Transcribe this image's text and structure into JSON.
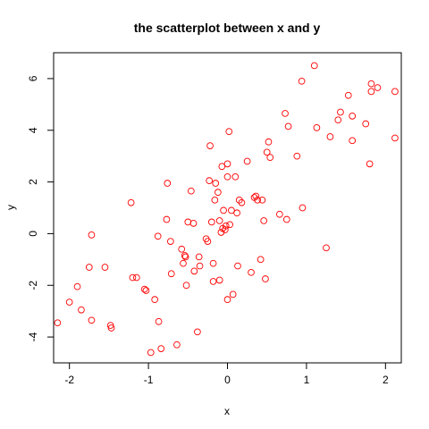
{
  "chart_data": {
    "type": "scatter",
    "title": "the scatterplot between x and y",
    "xlabel": "x",
    "ylabel": "y",
    "xlim": [
      -2.2,
      2.2
    ],
    "ylim": [
      -5.0,
      7.0
    ],
    "xticks": [
      -2,
      -1,
      0,
      1,
      2
    ],
    "yticks": [
      -4,
      -2,
      0,
      2,
      4,
      6
    ],
    "grid": false,
    "colors": {
      "points": "#ff0000",
      "axes": "#000000"
    },
    "points": [
      {
        "x": -2.15,
        "y": -3.45
      },
      {
        "x": -2.0,
        "y": -2.65
      },
      {
        "x": -1.9,
        "y": -2.05
      },
      {
        "x": -1.85,
        "y": -2.95
      },
      {
        "x": -1.75,
        "y": -1.3
      },
      {
        "x": -1.72,
        "y": -0.05
      },
      {
        "x": -1.72,
        "y": -3.35
      },
      {
        "x": -1.55,
        "y": -1.3
      },
      {
        "x": -1.48,
        "y": -3.55
      },
      {
        "x": -1.47,
        "y": -3.65
      },
      {
        "x": -1.22,
        "y": 1.2
      },
      {
        "x": -1.2,
        "y": -1.7
      },
      {
        "x": -1.15,
        "y": -1.7
      },
      {
        "x": -1.05,
        "y": -2.15
      },
      {
        "x": -1.03,
        "y": -2.2
      },
      {
        "x": -0.97,
        "y": -4.6
      },
      {
        "x": -0.92,
        "y": -2.55
      },
      {
        "x": -0.88,
        "y": -0.1
      },
      {
        "x": -0.87,
        "y": -3.4
      },
      {
        "x": -0.84,
        "y": -4.45
      },
      {
        "x": -0.77,
        "y": 0.55
      },
      {
        "x": -0.76,
        "y": 1.95
      },
      {
        "x": -0.72,
        "y": -0.3
      },
      {
        "x": -0.71,
        "y": -1.55
      },
      {
        "x": -0.64,
        "y": -4.3
      },
      {
        "x": -0.58,
        "y": -0.6
      },
      {
        "x": -0.56,
        "y": -1.15
      },
      {
        "x": -0.54,
        "y": -0.85
      },
      {
        "x": -0.53,
        "y": -0.9
      },
      {
        "x": -0.52,
        "y": -2.0
      },
      {
        "x": -0.5,
        "y": 0.45
      },
      {
        "x": -0.46,
        "y": 1.65
      },
      {
        "x": -0.43,
        "y": 0.4
      },
      {
        "x": -0.42,
        "y": -1.45
      },
      {
        "x": -0.38,
        "y": -3.8
      },
      {
        "x": -0.36,
        "y": -0.9
      },
      {
        "x": -0.35,
        "y": -1.25
      },
      {
        "x": -0.27,
        "y": -0.2
      },
      {
        "x": -0.25,
        "y": -0.3
      },
      {
        "x": -0.23,
        "y": 2.05
      },
      {
        "x": -0.22,
        "y": 3.4
      },
      {
        "x": -0.2,
        "y": 0.45
      },
      {
        "x": -0.18,
        "y": -1.15
      },
      {
        "x": -0.18,
        "y": -1.85
      },
      {
        "x": -0.16,
        "y": 1.3
      },
      {
        "x": -0.15,
        "y": 1.95
      },
      {
        "x": -0.12,
        "y": 1.6
      },
      {
        "x": -0.1,
        "y": 0.5
      },
      {
        "x": -0.1,
        "y": -1.8
      },
      {
        "x": -0.08,
        "y": 0.05
      },
      {
        "x": -0.07,
        "y": 2.6
      },
      {
        "x": -0.06,
        "y": 0.2
      },
      {
        "x": -0.05,
        "y": 0.9
      },
      {
        "x": -0.03,
        "y": 0.15
      },
      {
        "x": -0.02,
        "y": 0.3
      },
      {
        "x": 0.0,
        "y": 2.7
      },
      {
        "x": 0.0,
        "y": 2.2
      },
      {
        "x": 0.0,
        "y": -2.55
      },
      {
        "x": 0.02,
        "y": 3.95
      },
      {
        "x": 0.03,
        "y": 0.35
      },
      {
        "x": 0.05,
        "y": 0.9
      },
      {
        "x": 0.07,
        "y": -2.35
      },
      {
        "x": 0.1,
        "y": 2.2
      },
      {
        "x": 0.12,
        "y": 0.8
      },
      {
        "x": 0.13,
        "y": -1.25
      },
      {
        "x": 0.15,
        "y": 1.3
      },
      {
        "x": 0.18,
        "y": 1.2
      },
      {
        "x": 0.25,
        "y": 2.8
      },
      {
        "x": 0.3,
        "y": -1.5
      },
      {
        "x": 0.34,
        "y": 1.4
      },
      {
        "x": 0.36,
        "y": 1.45
      },
      {
        "x": 0.38,
        "y": 1.3
      },
      {
        "x": 0.42,
        "y": -1.0
      },
      {
        "x": 0.44,
        "y": 1.3
      },
      {
        "x": 0.46,
        "y": 0.5
      },
      {
        "x": 0.48,
        "y": -1.75
      },
      {
        "x": 0.5,
        "y": 3.15
      },
      {
        "x": 0.52,
        "y": 3.55
      },
      {
        "x": 0.54,
        "y": 2.95
      },
      {
        "x": 0.66,
        "y": 0.75
      },
      {
        "x": 0.73,
        "y": 4.65
      },
      {
        "x": 0.75,
        "y": 0.55
      },
      {
        "x": 0.77,
        "y": 4.15
      },
      {
        "x": 0.88,
        "y": 3.0
      },
      {
        "x": 0.94,
        "y": 5.9
      },
      {
        "x": 0.95,
        "y": 1.0
      },
      {
        "x": 1.1,
        "y": 6.5
      },
      {
        "x": 1.13,
        "y": 4.1
      },
      {
        "x": 1.25,
        "y": -0.55
      },
      {
        "x": 1.3,
        "y": 3.75
      },
      {
        "x": 1.4,
        "y": 4.4
      },
      {
        "x": 1.43,
        "y": 4.7
      },
      {
        "x": 1.53,
        "y": 5.35
      },
      {
        "x": 1.58,
        "y": 4.55
      },
      {
        "x": 1.58,
        "y": 3.6
      },
      {
        "x": 1.75,
        "y": 4.25
      },
      {
        "x": 1.8,
        "y": 2.7
      },
      {
        "x": 1.82,
        "y": 5.8
      },
      {
        "x": 1.82,
        "y": 5.5
      },
      {
        "x": 1.9,
        "y": 5.65
      },
      {
        "x": 2.12,
        "y": 5.5
      },
      {
        "x": 2.12,
        "y": 3.7
      }
    ]
  }
}
